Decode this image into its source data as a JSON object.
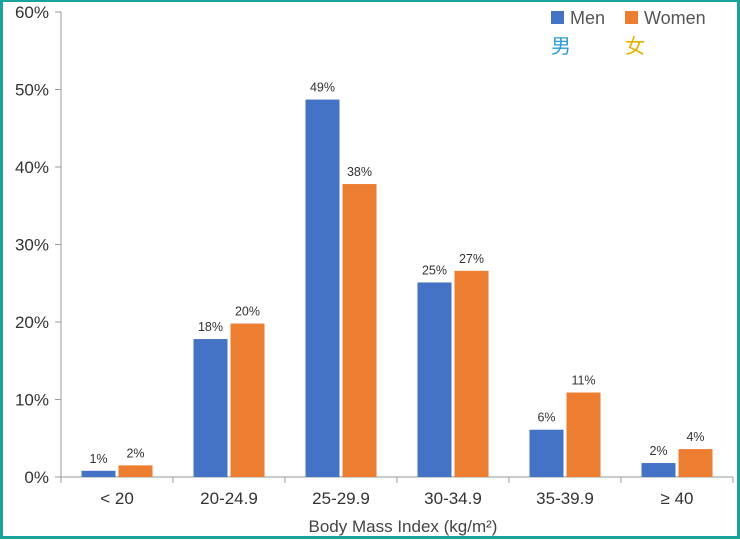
{
  "chart_data": {
    "type": "bar",
    "title": "",
    "xlabel": "Body Mass Index (kg/m²)",
    "ylabel": "",
    "ylim": [
      0,
      60
    ],
    "y_ticks": [
      "0%",
      "10%",
      "20%",
      "30%",
      "40%",
      "50%",
      "60%"
    ],
    "categories": [
      "< 20",
      "20-24.9",
      "25-29.9",
      "30-34.9",
      "35-39.9",
      "≥ 40"
    ],
    "series": [
      {
        "name": "Men",
        "color": "#4472c4",
        "values": [
          0.8,
          17.8,
          48.7,
          25.1,
          6.1,
          1.8
        ],
        "labels": [
          "1%",
          "18%",
          "49%",
          "25%",
          "6%",
          "2%"
        ]
      },
      {
        "name": "Women",
        "color": "#ed7d31",
        "values": [
          1.5,
          19.8,
          37.8,
          26.6,
          10.9,
          3.6
        ],
        "labels": [
          "2%",
          "20%",
          "38%",
          "27%",
          "11%",
          "4%"
        ]
      }
    ],
    "legend": {
      "position": "top-right",
      "annotations": [
        "男",
        "女"
      ]
    },
    "grid": false
  }
}
